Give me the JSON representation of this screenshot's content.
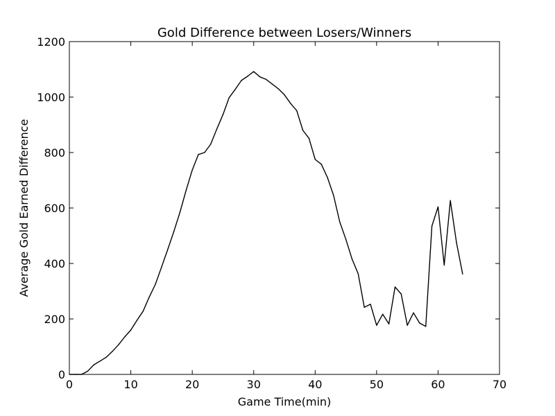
{
  "chart_data": {
    "type": "line",
    "title": "Gold Difference between Losers/Winners",
    "xlabel": "Game Time(min)",
    "ylabel": "Average Gold Earned Difference",
    "xlim": [
      0,
      70
    ],
    "ylim": [
      0,
      1200
    ],
    "xticks": [
      "0",
      "10",
      "20",
      "30",
      "40",
      "50",
      "60",
      "70"
    ],
    "yticks": [
      "0",
      "200",
      "400",
      "600",
      "800",
      "1000",
      "1200"
    ],
    "grid": false,
    "legend": "none",
    "line_color": "#000000",
    "series": [
      {
        "x": [
          0,
          1,
          2,
          3,
          4,
          5,
          6,
          7,
          8,
          9,
          10,
          11,
          12,
          13,
          14,
          15,
          16,
          17,
          18,
          19,
          20,
          21,
          22,
          23,
          24,
          25,
          26,
          27,
          28,
          29,
          30,
          31,
          32,
          33,
          34,
          35,
          36,
          37,
          38,
          39,
          40,
          41,
          42,
          43,
          44,
          45,
          46,
          47,
          48,
          49,
          50,
          51,
          52,
          53,
          54,
          55,
          56,
          57,
          58,
          59,
          60,
          61,
          62,
          63,
          64
        ],
        "values": [
          0,
          0,
          0,
          12,
          35,
          48,
          62,
          83,
          107,
          135,
          160,
          195,
          228,
          279,
          325,
          387,
          450,
          515,
          585,
          664,
          737,
          793,
          800,
          830,
          885,
          937,
          998,
          1028,
          1060,
          1075,
          1092,
          1073,
          1064,
          1047,
          1030,
          1008,
          977,
          951,
          880,
          851,
          775,
          758,
          710,
          645,
          550,
          487,
          416,
          363,
          242,
          253,
          177,
          217,
          182,
          315,
          290,
          177,
          222,
          185,
          173,
          535,
          604,
          394,
          627,
          475,
          362
        ]
      }
    ]
  }
}
